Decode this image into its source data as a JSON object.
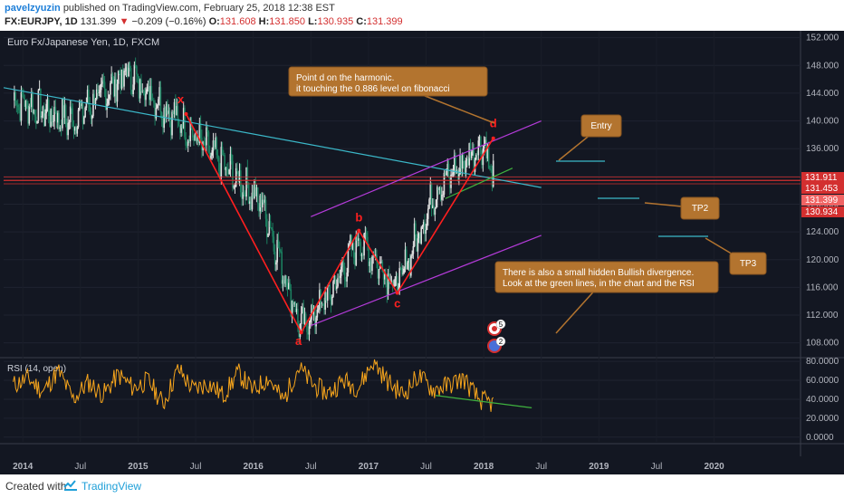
{
  "header": {
    "author": "pavelzyuzin",
    "published_text": "published on TradingView.com, February 25, 2018 12:38 EST",
    "symbol": "FX:EURJPY, 1D",
    "last": "131.399",
    "change": "−0.209 (−0.16%)",
    "o_label": "O:",
    "o_val": "131.608",
    "h_label": "H:",
    "h_val": "131.850",
    "l_label": "L:",
    "l_val": "130.935",
    "c_label": "C:",
    "c_val": "131.399"
  },
  "footer": {
    "created_with": "Created with",
    "brand": "TradingView"
  },
  "colors": {
    "background": "#131722",
    "candle_up": "#e0e0e0",
    "candle_down": "#1b7f5f",
    "harmonic": "#ff1f1f",
    "channel": "#b43bd9",
    "trendline": "#3bb8c9",
    "divergence": "#3fb23f",
    "rsi": "#f7a51c",
    "callout": "#b3742f",
    "target": "#3bb8c9"
  },
  "chart_data": [
    {
      "type": "candlestick",
      "title": "Euro Fx/Japanese Yen, 1D, FXCM",
      "ylim": [
        106,
        153
      ],
      "y_ticks": [
        "152.000",
        "148.000",
        "144.000",
        "140.000",
        "136.000",
        "132.000",
        "128.000",
        "124.000",
        "120.000",
        "116.000",
        "112.000",
        "108.000"
      ],
      "x_ticks": [
        "2014",
        "Jul",
        "2015",
        "Jul",
        "2016",
        "Jul",
        "2017",
        "Jul",
        "2018",
        "Jul",
        "2019",
        "Jul",
        "2020"
      ],
      "x_range": [
        "2013-11",
        "2020-10"
      ],
      "series": [
        {
          "x": [
            "2013-12",
            "2014-06",
            "2014-12",
            "2015-06",
            "2015-11",
            "2016-02",
            "2016-06",
            "2016-09",
            "2016-12",
            "2017-04",
            "2017-08",
            "2018-01",
            "2018-02"
          ],
          "close": [
            143,
            140,
            147,
            139,
            132,
            128,
            110,
            115,
            123,
            116,
            130,
            137,
            131.4
          ]
        }
      ],
      "harmonic_points": [
        {
          "label": "x",
          "date": "2015-06",
          "price": 141
        },
        {
          "label": "a",
          "date": "2016-06",
          "price": 109.5
        },
        {
          "label": "b",
          "date": "2016-12",
          "price": 124.2
        },
        {
          "label": "c",
          "date": "2017-04",
          "price": 115.2
        },
        {
          "label": "d",
          "date": "2018-02",
          "price": 137.5
        }
      ],
      "price_labels": [
        "131.911",
        "131.453",
        "131.399",
        "130.934"
      ],
      "annotations": [
        "Point d on the harmonic.\nit touching the 0.886 level on fibonacci",
        "Entry",
        "TP2",
        "TP3",
        "There is also a small hidden Bullish divergence.\nLook at the green lines, in the chart and the RSI"
      ],
      "markers": [
        "5",
        "2"
      ]
    },
    {
      "type": "line",
      "title": "RSI (14, open)",
      "ylim": [
        -5,
        83
      ],
      "y_ticks": [
        "80.0000",
        "60.0000",
        "40.0000",
        "20.0000",
        "0.0000"
      ],
      "series": [
        {
          "values": [
            55,
            62,
            48,
            70,
            40,
            58,
            45,
            66,
            52,
            60,
            35,
            72,
            50,
            57,
            44,
            68,
            49,
            63,
            38,
            74,
            55,
            46,
            60,
            52,
            80,
            58,
            45,
            65,
            50,
            55,
            62,
            40,
            35
          ]
        }
      ]
    }
  ]
}
